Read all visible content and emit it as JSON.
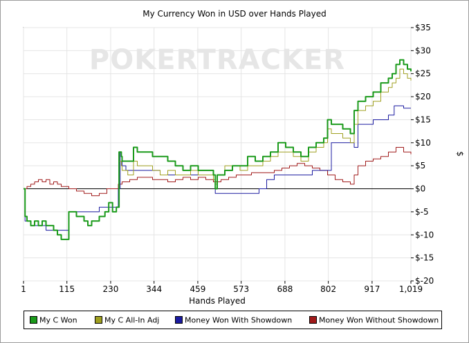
{
  "chart_data": {
    "type": "line",
    "title": "My Currency Won in USD over Hands Played",
    "xlabel": "Hands Played",
    "ylabel": "$",
    "watermark": "POKERTRACKER",
    "xlim": [
      1,
      1019
    ],
    "ylim": [
      -20,
      35
    ],
    "x_ticks": [
      "1",
      "115",
      "230",
      "344",
      "459",
      "573",
      "688",
      "802",
      "917",
      "1,019"
    ],
    "x_tick_values": [
      1,
      115,
      230,
      344,
      459,
      573,
      688,
      802,
      917,
      1019
    ],
    "y_ticks": [
      "$35",
      "$30",
      "$25",
      "$20",
      "$15",
      "$10",
      "$5",
      "$0",
      "$-5",
      "$-10",
      "$-15",
      "$-20"
    ],
    "y_tick_values": [
      35,
      30,
      25,
      20,
      15,
      10,
      5,
      0,
      -5,
      -10,
      -15,
      -20
    ],
    "y_axis_side": "right",
    "grid": true,
    "legend_position": "bottom",
    "series": [
      {
        "name": "My C Won",
        "color": "#1a9a1a",
        "x": [
          1,
          5,
          10,
          20,
          30,
          40,
          50,
          60,
          70,
          80,
          90,
          100,
          120,
          140,
          160,
          170,
          180,
          200,
          215,
          225,
          235,
          245,
          252,
          258,
          260,
          275,
          290,
          300,
          320,
          340,
          360,
          380,
          400,
          420,
          440,
          460,
          480,
          500,
          505,
          510,
          530,
          550,
          570,
          590,
          610,
          630,
          650,
          670,
          690,
          710,
          730,
          750,
          770,
          790,
          800,
          810,
          820,
          840,
          860,
          870,
          880,
          900,
          920,
          940,
          960,
          970,
          980,
          990,
          1000,
          1010,
          1019
        ],
        "y": [
          0,
          -6,
          -7,
          -8,
          -7,
          -8,
          -7,
          -8,
          -8,
          -9,
          -10,
          -11,
          -5,
          -6,
          -7,
          -8,
          -7,
          -6,
          -5,
          -3,
          -5,
          -4,
          8,
          7,
          6,
          6,
          9,
          8,
          8,
          7,
          7,
          6,
          5,
          4,
          5,
          4,
          4,
          3,
          0,
          3,
          4,
          5,
          5,
          7,
          6,
          7,
          8,
          10,
          9,
          8,
          7,
          9,
          10,
          11,
          15,
          14,
          14,
          13,
          12,
          17,
          19,
          20,
          21,
          23,
          24,
          25,
          27,
          28,
          27,
          26,
          25.5
        ],
        "line_width": 2
      },
      {
        "name": "My C All-In Adj",
        "color": "#a0a020",
        "x": [
          1,
          5,
          10,
          20,
          30,
          40,
          50,
          60,
          70,
          80,
          90,
          100,
          120,
          140,
          160,
          170,
          180,
          200,
          215,
          225,
          235,
          245,
          252,
          258,
          260,
          275,
          290,
          300,
          320,
          340,
          360,
          380,
          400,
          420,
          440,
          460,
          480,
          500,
          505,
          510,
          530,
          550,
          570,
          590,
          610,
          630,
          650,
          670,
          690,
          710,
          730,
          750,
          770,
          790,
          800,
          810,
          820,
          840,
          860,
          870,
          880,
          900,
          920,
          940,
          960,
          970,
          980,
          990,
          1000,
          1010,
          1019
        ],
        "y": [
          0,
          -6,
          -7,
          -8,
          -7,
          -8,
          -7,
          -8,
          -8,
          -9,
          -10,
          -11,
          -5,
          -6,
          -7,
          -8,
          -7,
          -6,
          -5,
          -3,
          -5,
          -4,
          6,
          5,
          4,
          3,
          6,
          5,
          5,
          4,
          3,
          4,
          3,
          3,
          4,
          3,
          3,
          2,
          1,
          3,
          5,
          5,
          4,
          5,
          5,
          6,
          7,
          8,
          8,
          7,
          6,
          8,
          9,
          10,
          13,
          12,
          12,
          11,
          10,
          14,
          17,
          18,
          19,
          21,
          22,
          23,
          24,
          26,
          25,
          24,
          23.5
        ],
        "line_width": 1
      },
      {
        "name": "Money Won With Showdown",
        "color": "#1a1aa0",
        "x": [
          1,
          5,
          20,
          40,
          60,
          80,
          100,
          120,
          140,
          160,
          200,
          230,
          245,
          250,
          255,
          258,
          260,
          270,
          300,
          340,
          350,
          360,
          400,
          440,
          480,
          500,
          505,
          510,
          560,
          580,
          620,
          640,
          660,
          700,
          740,
          760,
          780,
          810,
          860,
          870,
          880,
          900,
          920,
          940,
          960,
          975,
          990,
          1000,
          1019
        ],
        "y": [
          0,
          -7,
          -8,
          -8,
          -9,
          -9,
          -9,
          -5,
          -5,
          -5,
          -4,
          -4,
          -4,
          0,
          8,
          7,
          5,
          4,
          4,
          4,
          4,
          3,
          3,
          3,
          3,
          3,
          -1,
          -1,
          -1,
          -1,
          0,
          2,
          3,
          3,
          3,
          4,
          4,
          10,
          10,
          9,
          14,
          14,
          15,
          15,
          16,
          18,
          18,
          17.5,
          17.5
        ],
        "line_width": 1
      },
      {
        "name": "Money Won Without Showdown",
        "color": "#a01a1a",
        "x": [
          1,
          10,
          20,
          30,
          40,
          50,
          60,
          70,
          80,
          90,
          100,
          120,
          140,
          160,
          180,
          200,
          220,
          230,
          240,
          250,
          260,
          280,
          300,
          320,
          340,
          360,
          380,
          400,
          420,
          440,
          460,
          480,
          500,
          520,
          540,
          560,
          580,
          600,
          620,
          640,
          660,
          680,
          700,
          720,
          740,
          760,
          780,
          800,
          820,
          840,
          860,
          870,
          880,
          900,
          920,
          940,
          960,
          980,
          1000,
          1019
        ],
        "y": [
          0,
          0.5,
          1,
          1.5,
          2,
          1.5,
          2,
          1,
          1.5,
          1,
          0.5,
          0,
          -0.5,
          -1,
          -1.5,
          -1,
          0,
          0,
          0,
          1,
          1.5,
          2,
          2.5,
          2.5,
          2,
          2,
          1.5,
          2,
          2.5,
          2,
          2.5,
          2,
          1.5,
          2,
          2.5,
          3,
          3,
          3.5,
          3.5,
          3.5,
          4,
          4.5,
          5,
          5.5,
          5,
          4.5,
          4,
          3,
          2,
          1.5,
          1,
          3,
          5,
          6,
          6.5,
          7,
          8,
          9,
          8,
          7.5
        ],
        "line_width": 1
      }
    ]
  }
}
